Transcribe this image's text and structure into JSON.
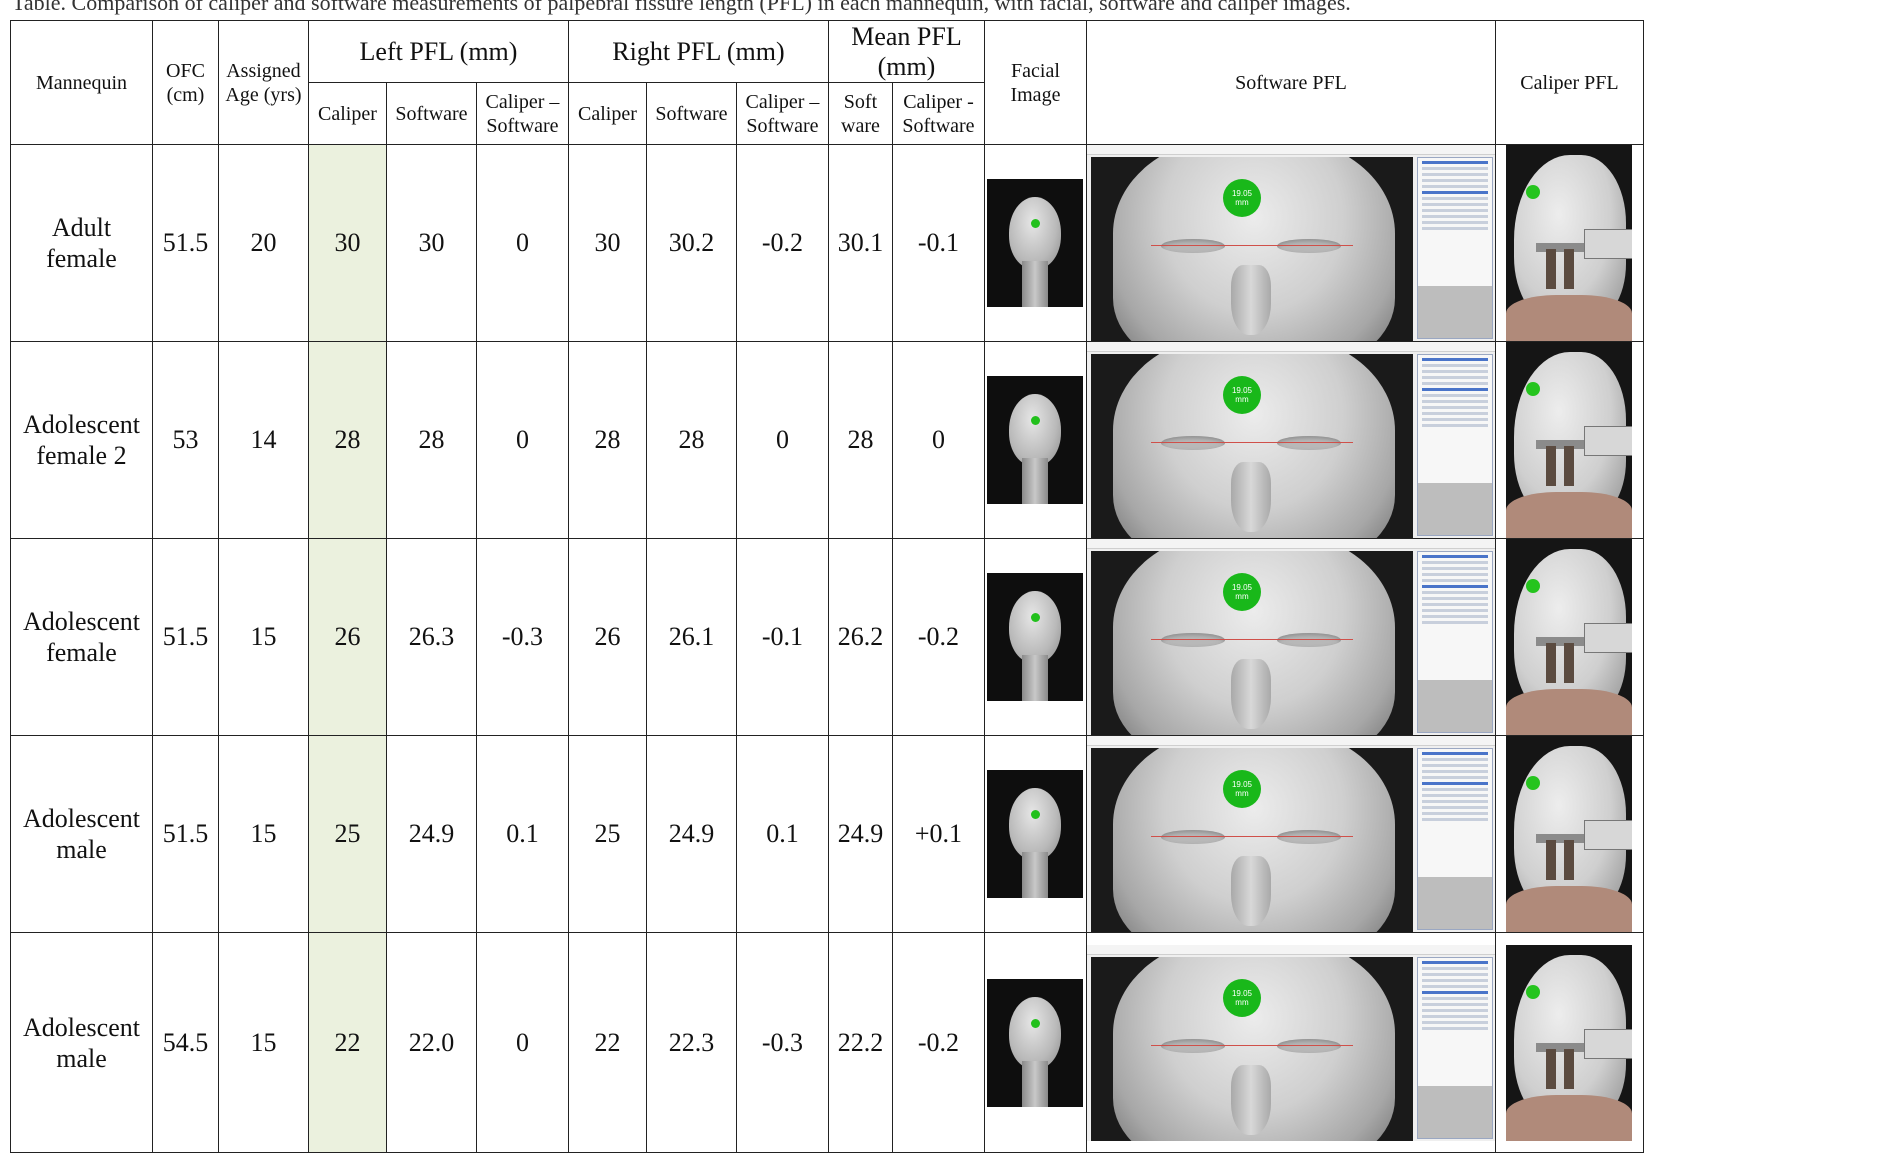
{
  "caption": "Table. Comparison of caliper and software measurements of palpebral fissure length (PFL) in each mannequin, with facial, software and caliper images.",
  "headers": {
    "mannequin": "Mannequin",
    "ofc": "OFC (cm)",
    "age": "Assigned Age (yrs)",
    "left_group": "Left PFL (mm)",
    "right_group": "Right PFL (mm)",
    "mean_group": "Mean PFL (mm)",
    "facial_image": "Facial Image",
    "software_pfl": "Software PFL",
    "caliper_pfl": "Caliper PFL",
    "caliper": "Caliper",
    "software": "Software",
    "diff": "Caliper – Software",
    "mean_software": "Soft ware",
    "mean_diff": "Caliper - Software"
  },
  "badge": {
    "value": "19.05",
    "unit": "mm"
  },
  "rows": [
    {
      "mannequin": "Adult female",
      "ofc": "51.5",
      "age": "20",
      "left_caliper": "30",
      "left_software": "30",
      "left_diff": "0",
      "right_caliper": "30",
      "right_software": "30.2",
      "right_diff": "-0.2",
      "mean_software": "30.1",
      "mean_diff": "-0.1"
    },
    {
      "mannequin": "Adolescent female 2",
      "ofc": "53",
      "age": "14",
      "left_caliper": "28",
      "left_software": "28",
      "left_diff": "0",
      "right_caliper": "28",
      "right_software": "28",
      "right_diff": "0",
      "mean_software": "28",
      "mean_diff": "0"
    },
    {
      "mannequin": "Adolescent female",
      "ofc": "51.5",
      "age": "15",
      "left_caliper": "26",
      "left_software": "26.3",
      "left_diff": "-0.3",
      "right_caliper": "26",
      "right_software": "26.1",
      "right_diff": "-0.1",
      "mean_software": "26.2",
      "mean_diff": "-0.2"
    },
    {
      "mannequin": "Adolescent male",
      "ofc": "51.5",
      "age": "15",
      "left_caliper": "25",
      "left_software": "24.9",
      "left_diff": "0.1",
      "right_caliper": "25",
      "right_software": "24.9",
      "right_diff": "0.1",
      "mean_software": "24.9",
      "mean_diff": "+0.1"
    },
    {
      "mannequin": "Adolescent male",
      "ofc": "54.5",
      "age": "15",
      "left_caliper": "22",
      "left_software": "22.0",
      "left_diff": "0",
      "right_caliper": "22",
      "right_software": "22.3",
      "right_diff": "-0.3",
      "mean_software": "22.2",
      "mean_diff": "-0.2"
    }
  ],
  "colors": {
    "caliper_highlight": "#ebf1de",
    "badge_green": "#19b81a",
    "measure_line": "#d0504a"
  }
}
